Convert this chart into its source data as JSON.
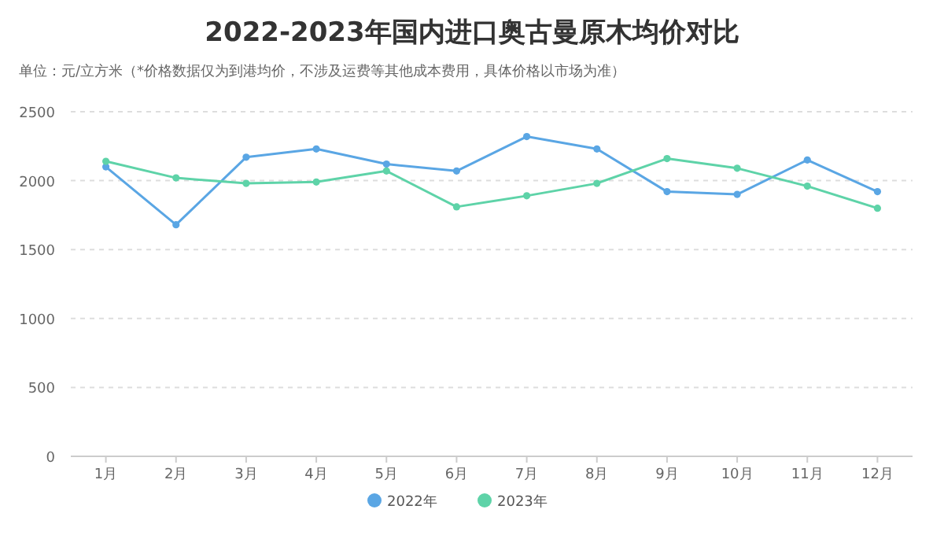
{
  "chart_data": {
    "type": "line",
    "title": "2022-2023年国内进口奥古曼原木均价对比",
    "subtitle": "单位：元/立方米（*价格数据仅为到港均价，不涉及运费等其他成本费用，具体价格以市场为准）",
    "categories": [
      "1月",
      "2月",
      "3月",
      "4月",
      "5月",
      "6月",
      "7月",
      "8月",
      "9月",
      "10月",
      "11月",
      "12月"
    ],
    "series": [
      {
        "name": "2022年",
        "color": "#5aa6e4",
        "values": [
          2100,
          1680,
          2170,
          2230,
          2120,
          2070,
          2320,
          2230,
          1920,
          1900,
          2150,
          1920
        ]
      },
      {
        "name": "2023年",
        "color": "#5ed3a8",
        "values": [
          2140,
          2020,
          1980,
          1990,
          2070,
          1810,
          1890,
          1980,
          2160,
          2090,
          1960,
          1800
        ]
      }
    ],
    "ylim": [
      0,
      2500
    ],
    "yticks": [
      0,
      500,
      1000,
      1500,
      2000,
      2500
    ],
    "grid": "y",
    "legend": "bottom",
    "marker": "circle",
    "line_style": "solid"
  }
}
